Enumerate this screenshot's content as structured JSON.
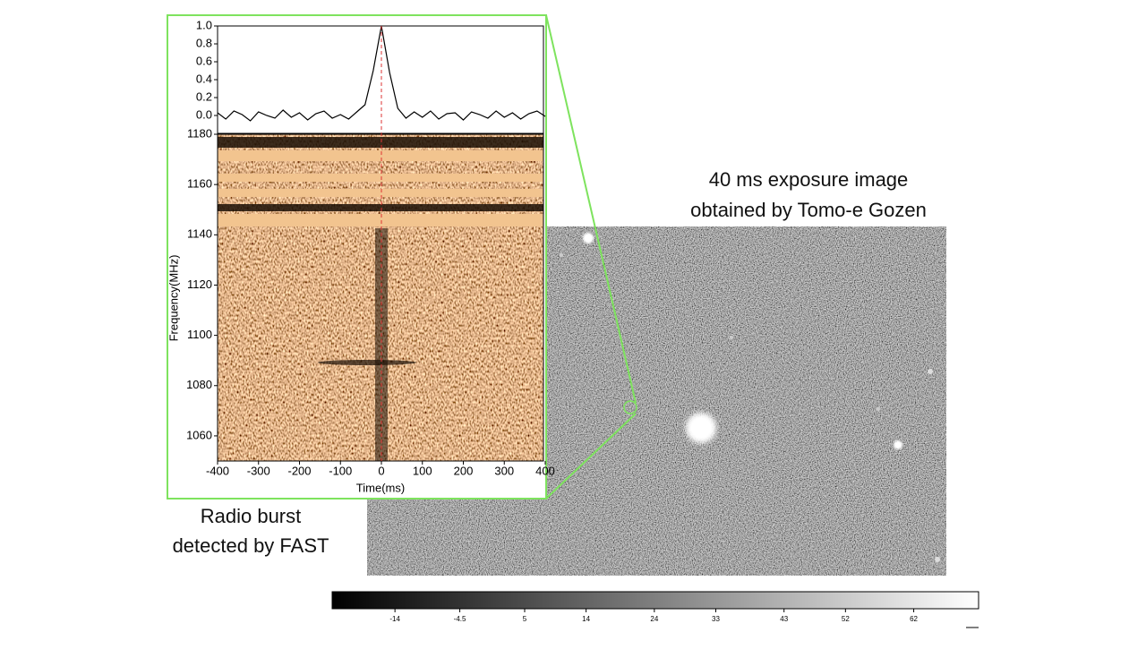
{
  "slide": {
    "image_caption": [
      "40 ms exposure image",
      "obtained by Tomo-e Gozen"
    ],
    "burst_caption": [
      "Radio burst",
      "detected by FAST"
    ]
  },
  "chart_data": [
    {
      "type": "line",
      "color": "#000000",
      "x": [
        -400,
        -380,
        -360,
        -340,
        -320,
        -300,
        -280,
        -260,
        -240,
        -220,
        -200,
        -180,
        -160,
        -140,
        -120,
        -100,
        -80,
        -60,
        -40,
        -20,
        0,
        20,
        40,
        60,
        80,
        100,
        120,
        140,
        160,
        180,
        200,
        220,
        240,
        260,
        280,
        300,
        320,
        340,
        360,
        380,
        400
      ],
      "values": [
        0.03,
        -0.04,
        0.05,
        0.01,
        -0.06,
        0.04,
        0,
        -0.03,
        0.06,
        -0.02,
        0.03,
        -0.05,
        0.02,
        0.05,
        -0.03,
        0.01,
        -0.04,
        0.04,
        0.12,
        0.5,
        1,
        0.48,
        0.08,
        -0.03,
        0.04,
        -0.02,
        0.05,
        -0.04,
        0.02,
        0.03,
        -0.05,
        0.04,
        0.01,
        -0.03,
        0.05,
        -0.02,
        0.03,
        -0.04,
        0.02,
        0.05,
        -0.01
      ],
      "xlim": [
        -400,
        400
      ],
      "ylim": [
        -0.2,
        1.0
      ],
      "yticks": [
        {
          "value": 0,
          "label": "0.0"
        },
        0.2,
        0.4,
        0.6,
        0.8,
        {
          "value": 1,
          "label": "1.0"
        }
      ],
      "vline": 0
    },
    {
      "type": "heatmap",
      "xlabel": "Time(ms)",
      "ylabel": "Frequency(MHz)",
      "xlim": [
        -400,
        400
      ],
      "xticks": [
        -400,
        -300,
        -200,
        -100,
        0,
        100,
        200,
        300,
        400
      ],
      "ylim": [
        1050,
        1180
      ],
      "yticks": [
        1060,
        1080,
        1100,
        1120,
        1140,
        1160,
        1180
      ]
    },
    {
      "type": "colorbar",
      "lim": [
        -23.2,
        71.5
      ],
      "ticks": [
        -14,
        -4.5,
        5,
        14,
        24,
        33,
        43,
        52,
        62
      ]
    }
  ]
}
